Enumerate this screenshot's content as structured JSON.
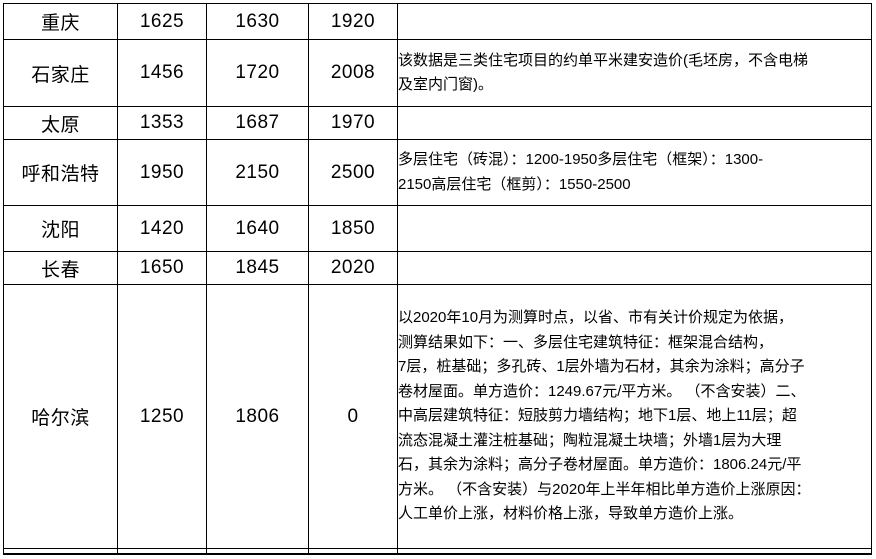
{
  "colors": {
    "border": "#000000",
    "text": "#000000",
    "background": "#ffffff"
  },
  "table": {
    "rows": [
      {
        "city": "重庆",
        "values": [
          "1625",
          "1630",
          "1920"
        ],
        "note": ""
      },
      {
        "city": "石家庄",
        "values": [
          "1456",
          "1720",
          "2008"
        ],
        "note": "该数据是三类住宅项目的约单平米建安造价(毛坯房，不含电梯\n及室内门窗)。"
      },
      {
        "city": "太原",
        "values": [
          "1353",
          "1687",
          "1970"
        ],
        "note": ""
      },
      {
        "city": "呼和浩特",
        "values": [
          "1950",
          "2150",
          "2500"
        ],
        "note": "多层住宅（砖混）：1200-1950多层住宅（框架）：1300-\n2150高层住宅（框剪）：1550-2500"
      },
      {
        "city": "沈阳",
        "values": [
          "1420",
          "1640",
          "1850"
        ],
        "note": ""
      },
      {
        "city": "长春",
        "values": [
          "1650",
          "1845",
          "2020"
        ],
        "note": ""
      },
      {
        "city": "哈尔滨",
        "values": [
          "1250",
          "1806",
          "0"
        ],
        "note": "以2020年10月为测算时点，以省、市有关计价规定为依据，\n测算结果如下：一、多层住宅建筑特征：框架混合结构，\n7层，桩基础；多孔砖、1层外墙为石材，其余为涂料；高分子\n卷材屋面。单方造价：1249.67元/平方米。 （不含安装）二、\n中高层建筑特征：短肢剪力墙结构；地下1层、地上11层；超\n流态混凝土灌注桩基础；陶粒混凝土块墙；外墙1层为大理\n石，其余为涂料；高分子卷材屋面。单方造价：1806.24元/平\n方米。 （不含安装）与2020年上半年相比单方造价上涨原因：\n人工单价上涨，材料价格上涨，导致单方造价上涨。"
      },
      {
        "city": "",
        "values": [
          "",
          "",
          ""
        ],
        "note": ""
      }
    ]
  }
}
